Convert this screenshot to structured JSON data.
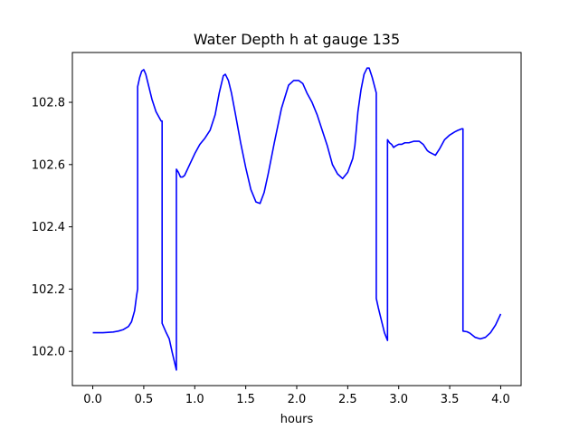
{
  "chart_data": {
    "type": "line",
    "title": "Water Depth h at gauge 135",
    "xlabel": "hours",
    "ylabel": "",
    "xlim": [
      -0.2,
      4.2
    ],
    "ylim": [
      101.89,
      102.96
    ],
    "xticks": [
      0.0,
      0.5,
      1.0,
      1.5,
      2.0,
      2.5,
      3.0,
      3.5,
      4.0
    ],
    "xtick_labels": [
      "0.0",
      "0.5",
      "1.0",
      "1.5",
      "2.0",
      "2.5",
      "3.0",
      "3.5",
      "4.0"
    ],
    "yticks": [
      102.0,
      102.2,
      102.4,
      102.6,
      102.8
    ],
    "ytick_labels": [
      "102.0",
      "102.2",
      "102.4",
      "102.6",
      "102.8"
    ],
    "grid": false,
    "series": [
      {
        "color": "#0000ff",
        "x": [
          0.0,
          0.1,
          0.2,
          0.25,
          0.3,
          0.35,
          0.38,
          0.41,
          0.43,
          0.44,
          0.44,
          0.46,
          0.48,
          0.5,
          0.52,
          0.55,
          0.58,
          0.62,
          0.67,
          0.68,
          0.68,
          0.72,
          0.75,
          0.78,
          0.82,
          0.82,
          0.84,
          0.86,
          0.88,
          0.9,
          0.95,
          1.0,
          1.05,
          1.1,
          1.15,
          1.2,
          1.24,
          1.28,
          1.3,
          1.33,
          1.36,
          1.4,
          1.45,
          1.5,
          1.55,
          1.6,
          1.64,
          1.68,
          1.72,
          1.78,
          1.85,
          1.92,
          1.97,
          2.02,
          2.06,
          2.1,
          2.15,
          2.2,
          2.25,
          2.3,
          2.35,
          2.4,
          2.45,
          2.5,
          2.55,
          2.57,
          2.6,
          2.63,
          2.66,
          2.69,
          2.71,
          2.74,
          2.78,
          2.78,
          2.8,
          2.83,
          2.86,
          2.89,
          2.89,
          2.91,
          2.93,
          2.95,
          2.97,
          3.0,
          3.03,
          3.06,
          3.1,
          3.15,
          3.2,
          3.24,
          3.28,
          3.3,
          3.33,
          3.36,
          3.4,
          3.45,
          3.5,
          3.55,
          3.58,
          3.62,
          3.63,
          3.63,
          3.67,
          3.7,
          3.75,
          3.8,
          3.85,
          3.9,
          3.95,
          4.0
        ],
        "y": [
          102.06,
          102.06,
          102.062,
          102.065,
          102.07,
          102.08,
          102.095,
          102.13,
          102.18,
          102.2,
          102.85,
          102.88,
          102.9,
          102.905,
          102.89,
          102.85,
          102.81,
          102.77,
          102.74,
          102.74,
          102.09,
          102.06,
          102.04,
          101.995,
          101.94,
          102.585,
          102.575,
          102.56,
          102.56,
          102.565,
          102.6,
          102.635,
          102.665,
          102.685,
          102.71,
          102.76,
          102.83,
          102.885,
          102.89,
          102.87,
          102.83,
          102.76,
          102.67,
          102.59,
          102.52,
          102.48,
          102.475,
          102.51,
          102.57,
          102.67,
          102.78,
          102.855,
          102.87,
          102.87,
          102.86,
          102.83,
          102.8,
          102.76,
          102.71,
          102.66,
          102.6,
          102.57,
          102.555,
          102.575,
          102.62,
          102.66,
          102.77,
          102.84,
          102.89,
          102.91,
          102.91,
          102.88,
          102.83,
          102.17,
          102.14,
          102.1,
          102.06,
          102.035,
          102.68,
          102.67,
          102.665,
          102.655,
          102.66,
          102.665,
          102.665,
          102.67,
          102.67,
          102.675,
          102.675,
          102.665,
          102.645,
          102.64,
          102.635,
          102.63,
          102.65,
          102.68,
          102.695,
          102.705,
          102.71,
          102.715,
          102.715,
          102.065,
          102.063,
          102.058,
          102.045,
          102.04,
          102.045,
          102.06,
          102.085,
          102.12
        ]
      }
    ]
  }
}
